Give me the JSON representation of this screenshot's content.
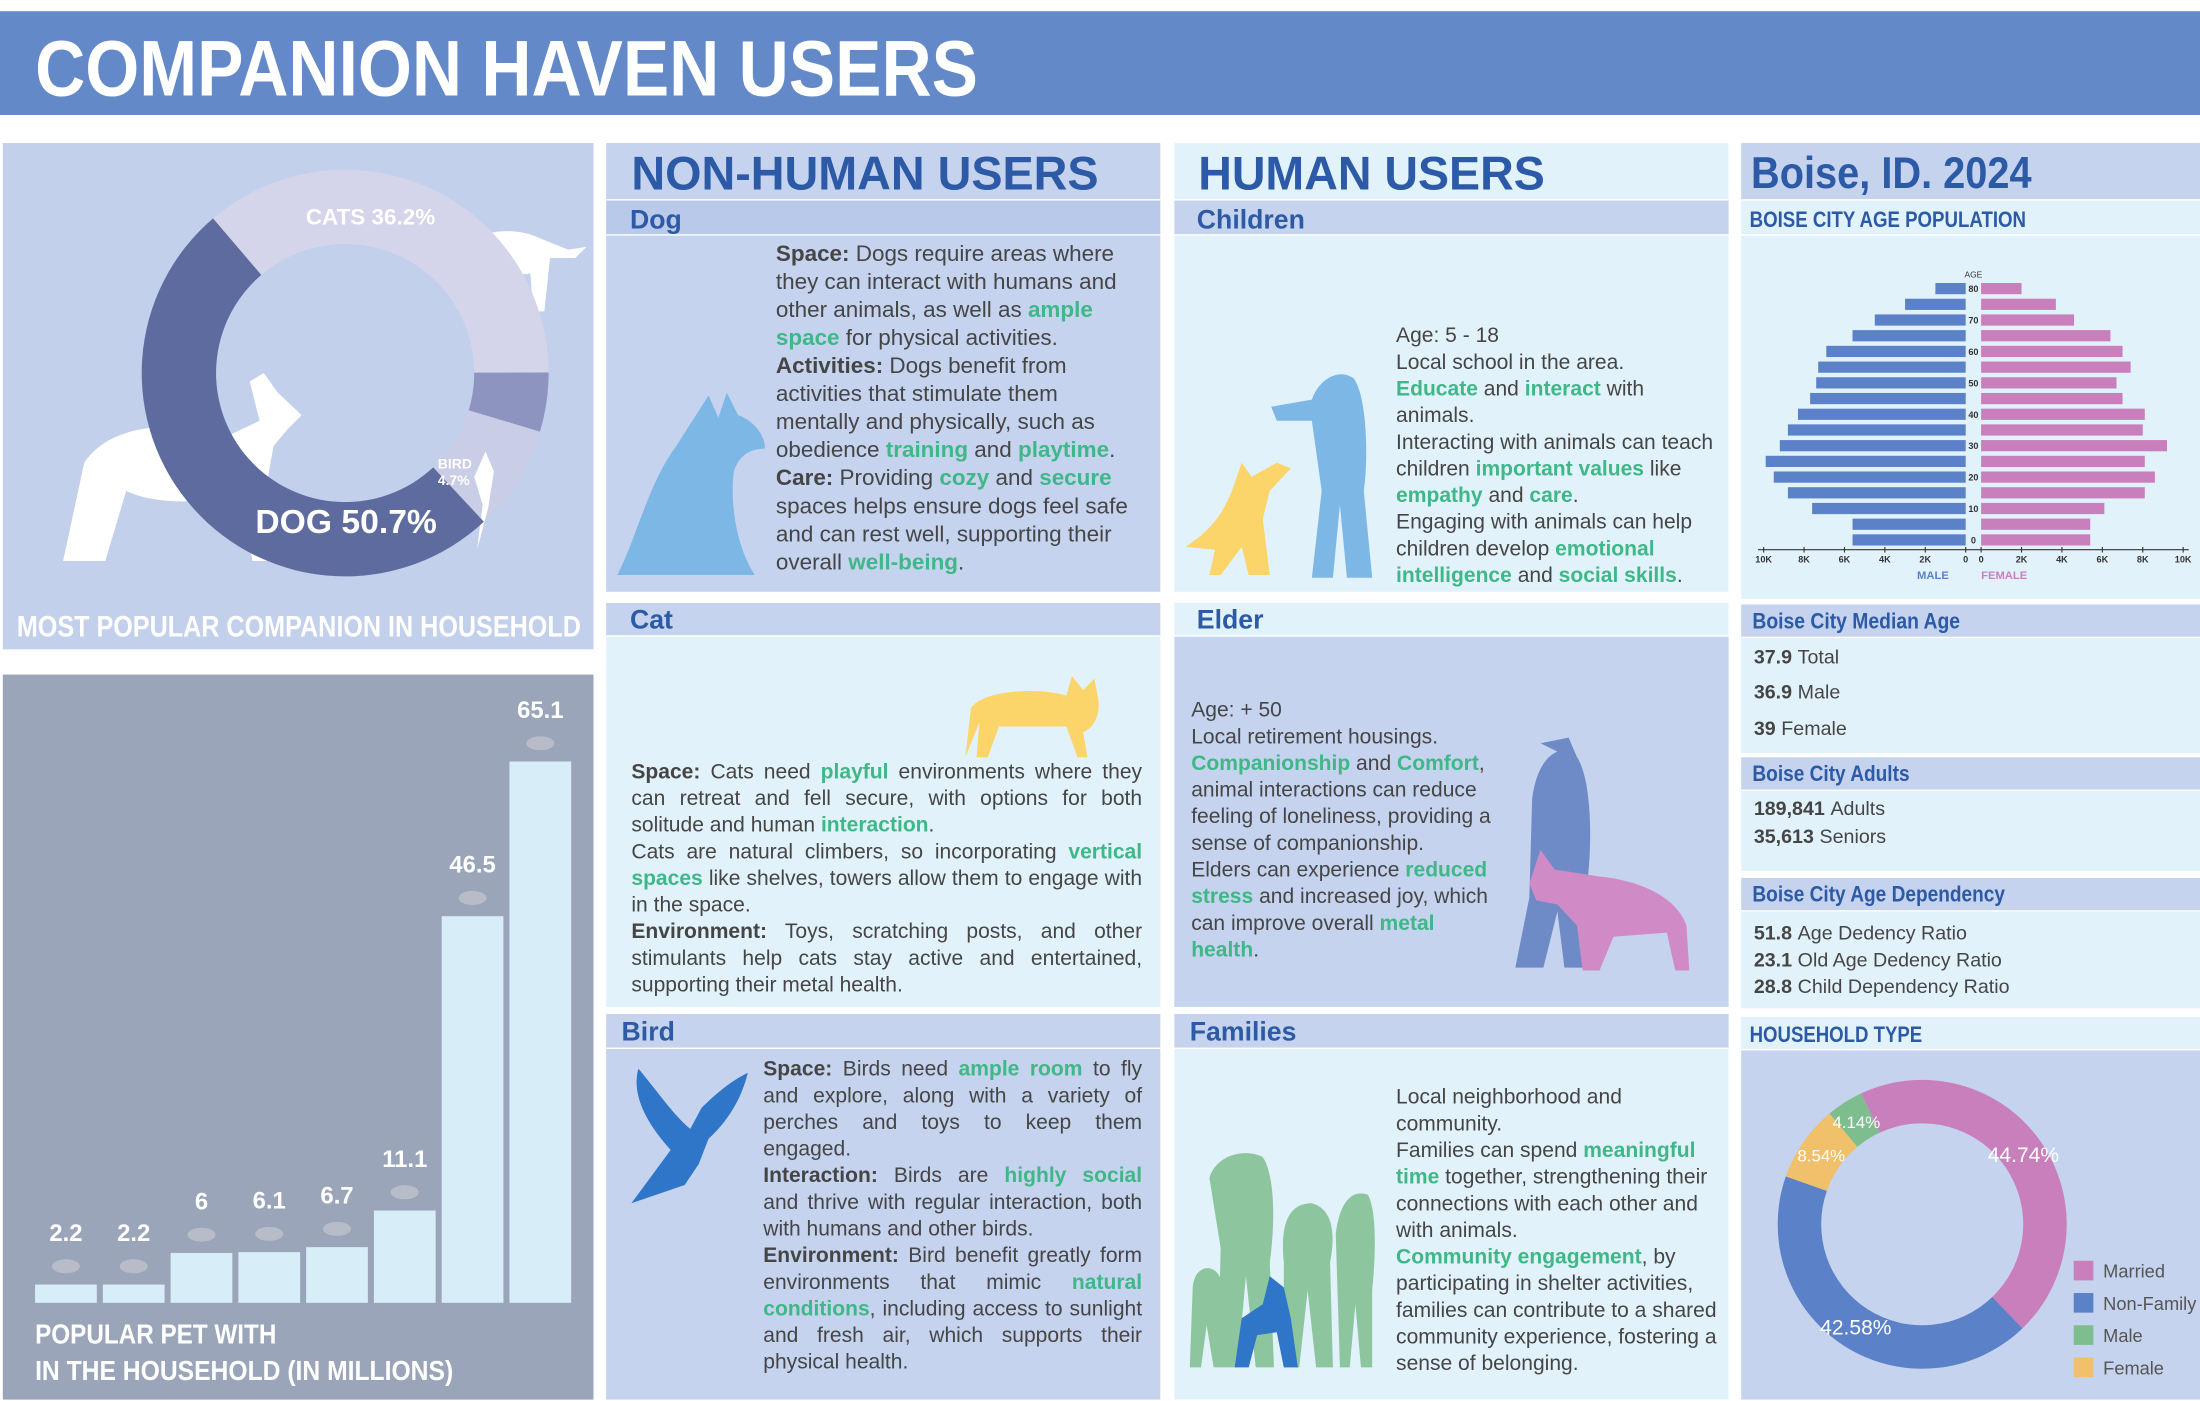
{
  "title": "COMPANION HAVEN USERS",
  "chart_data": [
    {
      "type": "pie",
      "title": "MOST POPULAR COMPANION IN HOUSEHOLD",
      "categories": [
        "DOG",
        "CATS",
        "BIRD"
      ],
      "values": [
        50.7,
        36.2,
        4.7
      ],
      "value_labels": [
        "50.7%",
        "36.2%",
        "4.7%"
      ],
      "colors": [
        "#5e6b9f",
        "#d4d5ea",
        "#8d94bf"
      ]
    },
    {
      "type": "bar",
      "title": [
        "POPULAR PET WITH",
        "IN THE HOUSEHOLD (IN MILLIONS)"
      ],
      "values": [
        2.2,
        2.2,
        6,
        6.1,
        6.7,
        11.1,
        46.5,
        65.1
      ],
      "color": "#d7edf8"
    },
    {
      "type": "pyramid",
      "title": "BOISE CITY AGE POPULATION",
      "axis_label": "AGE",
      "categories": [
        "0",
        null,
        "10",
        null,
        "20",
        null,
        "30",
        null,
        "40",
        null,
        "50",
        null,
        "60",
        null,
        "70",
        null,
        "80"
      ],
      "series": [
        {
          "name": "MALE",
          "color": "#5b82c9",
          "values": [
            5600,
            5600,
            7600,
            8800,
            9500,
            9900,
            9200,
            8800,
            8300,
            7700,
            7400,
            7300,
            6900,
            5600,
            4500,
            3000,
            1500
          ]
        },
        {
          "name": "FEMALE",
          "color": "#c97fbc",
          "values": [
            5400,
            5400,
            6100,
            8100,
            8600,
            8100,
            9200,
            8000,
            8100,
            7000,
            6700,
            7400,
            7000,
            6400,
            4600,
            3700,
            2000
          ]
        }
      ],
      "xlim": [
        0,
        10000
      ],
      "xticks": [
        0,
        {
          "value": 2000,
          "label": "2K"
        },
        {
          "value": 4000,
          "label": "4K"
        },
        {
          "value": 6000,
          "label": "6K"
        },
        {
          "value": 8000,
          "label": "8K"
        },
        {
          "value": 10000,
          "label": "10K"
        }
      ]
    },
    {
      "type": "pie",
      "title": "HOUSEHOLD TYPE",
      "categories": [
        "Married",
        "Non-Family",
        "Female",
        "Male"
      ],
      "values": [
        44.74,
        42.58,
        8.54,
        4.14
      ],
      "value_labels": [
        "44.74%",
        "42.58%",
        "8.54%",
        "4.14%"
      ],
      "colors": [
        "#c97fbc",
        "#5b82c9",
        "#f0c06a",
        "#7dbd8e"
      ]
    }
  ],
  "non_human_users": {
    "heading": "NON-HUMAN USERS",
    "panels": [
      {
        "name": "Dog",
        "text": [
          [
            {
              "b": "Space:"
            },
            " Dogs require areas where they can interact with humans and other animals, as well as ",
            {
              "g": "ample space"
            },
            " for physical activities."
          ],
          [
            {
              "b": "Activities:"
            },
            " Dogs benefit from activities that stimulate them mentally and physically, such as obedience ",
            {
              "g": "training"
            },
            " and ",
            {
              "g": "playtime"
            },
            "."
          ],
          [
            {
              "b": "Care:"
            },
            " Providing ",
            {
              "g": "cozy"
            },
            " and ",
            {
              "g": "secure"
            },
            " spaces helps ensure dogs feel safe and can rest well, supporting their overall ",
            {
              "g": "well-being"
            },
            "."
          ]
        ]
      },
      {
        "name": "Cat",
        "text": [
          [
            {
              "b": "Space:"
            },
            " Cats need ",
            {
              "g": "playful"
            },
            " environments where they can retreat and fell secure, with options for both solitude and human ",
            {
              "g": "interaction"
            },
            "."
          ],
          [
            "Cats are natural climbers, so incorporating ",
            {
              "g": "vertical spaces"
            },
            " like shelves, towers allow them to engage with in the space."
          ],
          [
            {
              "b": "Environment:"
            },
            " Toys, scratching posts, and other stimulants help cats stay active and entertained, supporting their metal health."
          ]
        ]
      },
      {
        "name": "Bird",
        "text": [
          [
            {
              "b": "Space:"
            },
            " Birds need ",
            {
              "g": "ample room"
            },
            " to fly and explore, along with a variety of perches and toys to keep them engaged."
          ],
          [
            {
              "b": "Interaction:"
            },
            " Birds are ",
            {
              "g": "highly social"
            },
            " and thrive with regular interaction, both with humans and other birds."
          ],
          [
            {
              "b": "Environment:"
            },
            " Bird benefit greatly form environments that mimic ",
            {
              "g": "natural conditions"
            },
            ", including access to sunlight and fresh air, which supports their physical health."
          ]
        ]
      }
    ]
  },
  "human_users": {
    "heading": "HUMAN USERS",
    "panels": [
      {
        "name": "Children",
        "text": [
          [
            "Age: 5 - 18"
          ],
          [
            "Local school in the area."
          ],
          [
            {
              "g": "Educate"
            },
            " and ",
            {
              "g": "interact"
            },
            " with animals."
          ],
          [
            "Interacting with animals can teach children ",
            {
              "g": "important values"
            },
            " like ",
            {
              "g": "empathy"
            },
            " and ",
            {
              "g": "care"
            },
            "."
          ],
          [
            "Engaging with animals can help children develop ",
            {
              "g": "emotional intelligence"
            },
            " and ",
            {
              "g": "social skills"
            },
            "."
          ]
        ]
      },
      {
        "name": "Elder",
        "text": [
          [
            "Age: + 50"
          ],
          [
            "Local retirement housings."
          ],
          [
            {
              "g": "Companionship"
            },
            " and ",
            {
              "g": "Comfort"
            },
            ", animal interactions can reduce feeling of loneliness, providing a sense of companionship."
          ],
          [
            "Elders can experience ",
            {
              "g": "reduced stress"
            },
            " and increased joy, which can improve overall ",
            {
              "g": "metal health"
            },
            "."
          ]
        ]
      },
      {
        "name": "Families",
        "text": [
          [
            "Local neighborhood and community."
          ],
          [
            "Families can spend ",
            {
              "g": "meaningful time"
            },
            " together, strengthening their connections with each other and with animals."
          ],
          [
            {
              "g": "Community engagement"
            },
            ", by participating in shelter activities, families can contribute to a shared community experience, fostering a sense of belonging."
          ]
        ]
      }
    ]
  },
  "boise": {
    "heading": "Boise, ID. 2024",
    "facts": [
      {
        "title": "Boise City Median Age",
        "items": [
          {
            "number": "37.9",
            "label": "Total"
          },
          {
            "number": "36.9",
            "label": "Male"
          },
          {
            "number": "39",
            "label": "Female"
          }
        ]
      },
      {
        "title": "Boise City Adults",
        "items": [
          {
            "number": "189,841",
            "label": "Adults"
          },
          {
            "number": "35,613",
            "label": "Seniors"
          }
        ]
      },
      {
        "title": "Boise City Age Dependency",
        "items": [
          {
            "number": "51.8",
            "label": "Age Dedency Ratio"
          },
          {
            "number": "23.1",
            "label": "Old Age Dedency Ratio"
          },
          {
            "number": "28.8",
            "label": "Child Dependency Ratio"
          }
        ]
      }
    ]
  }
}
